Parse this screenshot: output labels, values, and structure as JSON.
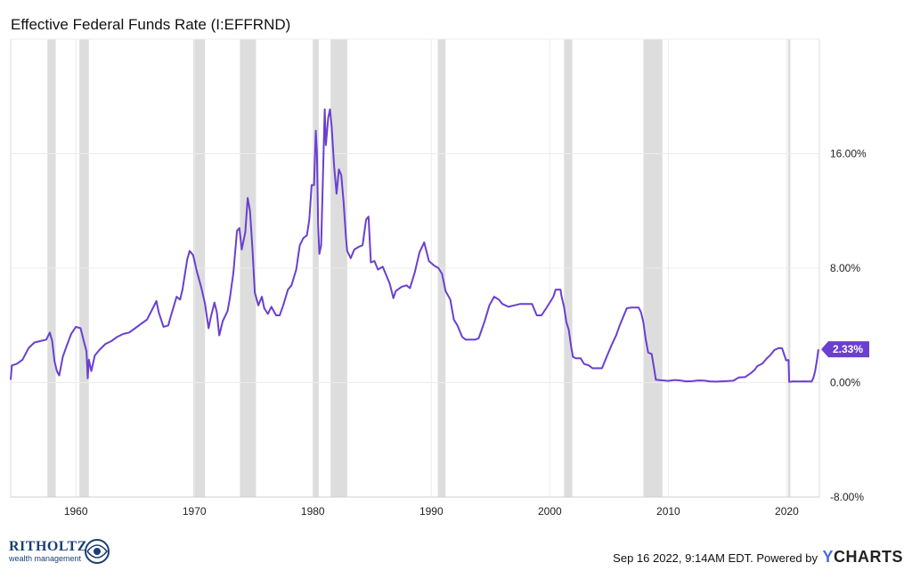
{
  "chart_data": {
    "type": "line",
    "title": "Effective Federal Funds Rate (I:EFFRND)",
    "xlabel": "",
    "ylabel": "",
    "xlim": [
      1954.5,
      2022.75
    ],
    "ylim": [
      -8,
      24
    ],
    "x_ticks": [
      1960,
      1970,
      1980,
      1990,
      2000,
      2010,
      2020
    ],
    "x_tick_labels": [
      "1960",
      "1970",
      "1980",
      "1990",
      "2000",
      "2010",
      "2020"
    ],
    "y_ticks": [
      16,
      8,
      0,
      -8
    ],
    "y_tick_labels": [
      "16.00%",
      "8.00%",
      "0.00%",
      "-8.00%"
    ],
    "grid": true,
    "series": [
      {
        "name": "",
        "color": "#6a3fd1",
        "last_value_label": "2.33%",
        "points": [
          [
            1954.5,
            0.2
          ],
          [
            1954.6,
            1.2
          ],
          [
            1955.0,
            1.3
          ],
          [
            1955.5,
            1.6
          ],
          [
            1956.0,
            2.4
          ],
          [
            1956.5,
            2.8
          ],
          [
            1957.0,
            2.9
          ],
          [
            1957.5,
            3.0
          ],
          [
            1957.8,
            3.5
          ],
          [
            1958.0,
            2.9
          ],
          [
            1958.2,
            1.5
          ],
          [
            1958.4,
            0.8
          ],
          [
            1958.6,
            0.5
          ],
          [
            1958.9,
            1.8
          ],
          [
            1959.2,
            2.5
          ],
          [
            1959.6,
            3.4
          ],
          [
            1960.0,
            3.9
          ],
          [
            1960.4,
            3.8
          ],
          [
            1960.7,
            2.8
          ],
          [
            1960.9,
            2.2
          ],
          [
            1961.0,
            0.3
          ],
          [
            1961.1,
            1.6
          ],
          [
            1961.3,
            0.8
          ],
          [
            1961.6,
            1.9
          ],
          [
            1962.0,
            2.3
          ],
          [
            1962.5,
            2.7
          ],
          [
            1963.0,
            2.9
          ],
          [
            1963.5,
            3.2
          ],
          [
            1964.0,
            3.4
          ],
          [
            1964.5,
            3.5
          ],
          [
            1965.0,
            3.8
          ],
          [
            1965.5,
            4.1
          ],
          [
            1966.0,
            4.4
          ],
          [
            1966.5,
            5.2
          ],
          [
            1966.8,
            5.7
          ],
          [
            1967.0,
            4.9
          ],
          [
            1967.4,
            3.9
          ],
          [
            1967.8,
            4.0
          ],
          [
            1968.0,
            4.6
          ],
          [
            1968.5,
            6.0
          ],
          [
            1968.8,
            5.8
          ],
          [
            1969.0,
            6.5
          ],
          [
            1969.4,
            8.6
          ],
          [
            1969.6,
            9.2
          ],
          [
            1969.9,
            8.9
          ],
          [
            1970.2,
            7.8
          ],
          [
            1970.6,
            6.6
          ],
          [
            1970.9,
            5.5
          ],
          [
            1971.2,
            3.8
          ],
          [
            1971.4,
            4.6
          ],
          [
            1971.7,
            5.6
          ],
          [
            1971.9,
            4.9
          ],
          [
            1972.1,
            3.3
          ],
          [
            1972.4,
            4.3
          ],
          [
            1972.8,
            5.0
          ],
          [
            1973.0,
            5.9
          ],
          [
            1973.3,
            7.7
          ],
          [
            1973.6,
            10.6
          ],
          [
            1973.8,
            10.8
          ],
          [
            1974.0,
            9.3
          ],
          [
            1974.3,
            10.5
          ],
          [
            1974.5,
            12.9
          ],
          [
            1974.7,
            12.0
          ],
          [
            1974.9,
            9.4
          ],
          [
            1975.1,
            6.3
          ],
          [
            1975.4,
            5.4
          ],
          [
            1975.7,
            6.0
          ],
          [
            1975.9,
            5.2
          ],
          [
            1976.2,
            4.8
          ],
          [
            1976.5,
            5.3
          ],
          [
            1976.9,
            4.7
          ],
          [
            1977.2,
            4.7
          ],
          [
            1977.5,
            5.4
          ],
          [
            1977.9,
            6.5
          ],
          [
            1978.2,
            6.8
          ],
          [
            1978.6,
            7.9
          ],
          [
            1978.9,
            9.6
          ],
          [
            1979.2,
            10.1
          ],
          [
            1979.5,
            10.3
          ],
          [
            1979.7,
            11.4
          ],
          [
            1979.9,
            13.8
          ],
          [
            1980.1,
            13.8
          ],
          [
            1980.25,
            17.6
          ],
          [
            1980.35,
            16.0
          ],
          [
            1980.45,
            11.0
          ],
          [
            1980.55,
            9.0
          ],
          [
            1980.7,
            9.6
          ],
          [
            1980.9,
            15.8
          ],
          [
            1981.0,
            19.1
          ],
          [
            1981.1,
            16.6
          ],
          [
            1981.3,
            18.5
          ],
          [
            1981.45,
            19.1
          ],
          [
            1981.6,
            17.8
          ],
          [
            1981.8,
            15.1
          ],
          [
            1982.0,
            13.2
          ],
          [
            1982.2,
            14.9
          ],
          [
            1982.4,
            14.5
          ],
          [
            1982.6,
            12.6
          ],
          [
            1982.8,
            10.1
          ],
          [
            1982.9,
            9.2
          ],
          [
            1983.2,
            8.7
          ],
          [
            1983.5,
            9.3
          ],
          [
            1983.9,
            9.5
          ],
          [
            1984.2,
            9.6
          ],
          [
            1984.5,
            11.4
          ],
          [
            1984.7,
            11.6
          ],
          [
            1984.9,
            8.4
          ],
          [
            1985.2,
            8.5
          ],
          [
            1985.5,
            7.9
          ],
          [
            1985.9,
            8.1
          ],
          [
            1986.2,
            7.5
          ],
          [
            1986.5,
            6.9
          ],
          [
            1986.8,
            5.9
          ],
          [
            1987.0,
            6.4
          ],
          [
            1987.5,
            6.7
          ],
          [
            1987.9,
            6.8
          ],
          [
            1988.2,
            6.6
          ],
          [
            1988.6,
            7.7
          ],
          [
            1989.0,
            9.1
          ],
          [
            1989.4,
            9.8
          ],
          [
            1989.8,
            8.5
          ],
          [
            1990.2,
            8.2
          ],
          [
            1990.6,
            8.0
          ],
          [
            1990.9,
            7.6
          ],
          [
            1991.2,
            6.4
          ],
          [
            1991.6,
            5.8
          ],
          [
            1991.9,
            4.4
          ],
          [
            1992.2,
            4.0
          ],
          [
            1992.6,
            3.2
          ],
          [
            1992.9,
            3.0
          ],
          [
            1993.3,
            3.0
          ],
          [
            1993.7,
            3.0
          ],
          [
            1994.0,
            3.1
          ],
          [
            1994.5,
            4.3
          ],
          [
            1994.9,
            5.4
          ],
          [
            1995.3,
            6.0
          ],
          [
            1995.7,
            5.8
          ],
          [
            1996.0,
            5.5
          ],
          [
            1996.5,
            5.3
          ],
          [
            1997.0,
            5.4
          ],
          [
            1997.5,
            5.5
          ],
          [
            1998.0,
            5.5
          ],
          [
            1998.5,
            5.5
          ],
          [
            1998.9,
            4.7
          ],
          [
            1999.3,
            4.7
          ],
          [
            1999.7,
            5.2
          ],
          [
            2000.0,
            5.6
          ],
          [
            2000.3,
            6.0
          ],
          [
            2000.5,
            6.5
          ],
          [
            2000.9,
            6.5
          ],
          [
            2001.0,
            6.0
          ],
          [
            2001.2,
            5.3
          ],
          [
            2001.4,
            4.2
          ],
          [
            2001.6,
            3.7
          ],
          [
            2001.8,
            2.5
          ],
          [
            2001.95,
            1.8
          ],
          [
            2002.2,
            1.7
          ],
          [
            2002.6,
            1.7
          ],
          [
            2002.9,
            1.3
          ],
          [
            2003.3,
            1.2
          ],
          [
            2003.6,
            1.0
          ],
          [
            2004.0,
            1.0
          ],
          [
            2004.4,
            1.0
          ],
          [
            2004.6,
            1.4
          ],
          [
            2004.9,
            2.0
          ],
          [
            2005.2,
            2.6
          ],
          [
            2005.6,
            3.3
          ],
          [
            2005.9,
            4.0
          ],
          [
            2006.2,
            4.6
          ],
          [
            2006.5,
            5.2
          ],
          [
            2006.9,
            5.25
          ],
          [
            2007.2,
            5.25
          ],
          [
            2007.5,
            5.25
          ],
          [
            2007.7,
            4.9
          ],
          [
            2007.9,
            4.2
          ],
          [
            2008.1,
            3.0
          ],
          [
            2008.3,
            2.1
          ],
          [
            2008.6,
            2.0
          ],
          [
            2008.8,
            1.0
          ],
          [
            2008.95,
            0.2
          ],
          [
            2009.2,
            0.18
          ],
          [
            2009.6,
            0.15
          ],
          [
            2010.0,
            0.12
          ],
          [
            2010.5,
            0.18
          ],
          [
            2011.0,
            0.15
          ],
          [
            2011.5,
            0.09
          ],
          [
            2012.0,
            0.1
          ],
          [
            2012.5,
            0.15
          ],
          [
            2013.0,
            0.14
          ],
          [
            2013.5,
            0.09
          ],
          [
            2014.0,
            0.07
          ],
          [
            2014.5,
            0.09
          ],
          [
            2015.0,
            0.11
          ],
          [
            2015.5,
            0.13
          ],
          [
            2015.95,
            0.36
          ],
          [
            2016.5,
            0.39
          ],
          [
            2016.95,
            0.65
          ],
          [
            2017.3,
            0.9
          ],
          [
            2017.5,
            1.15
          ],
          [
            2017.95,
            1.33
          ],
          [
            2018.3,
            1.68
          ],
          [
            2018.6,
            1.91
          ],
          [
            2018.95,
            2.27
          ],
          [
            2019.3,
            2.41
          ],
          [
            2019.6,
            2.4
          ],
          [
            2019.8,
            1.9
          ],
          [
            2019.95,
            1.55
          ],
          [
            2020.15,
            1.58
          ],
          [
            2020.2,
            0.05
          ],
          [
            2020.5,
            0.09
          ],
          [
            2021.0,
            0.08
          ],
          [
            2021.5,
            0.09
          ],
          [
            2022.1,
            0.08
          ],
          [
            2022.25,
            0.33
          ],
          [
            2022.4,
            0.83
          ],
          [
            2022.55,
            1.58
          ],
          [
            2022.67,
            2.33
          ]
        ]
      }
    ],
    "recessions": [
      [
        1957.6,
        1958.3
      ],
      [
        1960.3,
        1961.1
      ],
      [
        1969.9,
        1970.9
      ],
      [
        1973.85,
        1975.2
      ],
      [
        1980.0,
        1980.5
      ],
      [
        1981.5,
        1982.9
      ],
      [
        1990.55,
        1991.2
      ],
      [
        2001.2,
        2001.9
      ],
      [
        2007.9,
        2009.5
      ],
      [
        2020.1,
        2020.3
      ]
    ],
    "colors": {
      "line": "#6a3fd1",
      "recession": "#dddddd",
      "grid": "#ececec",
      "label_bg": "#6a3fd1"
    }
  },
  "footer": {
    "timestamp": "Sep 16 2022, 9:14AM EDT.",
    "powered_by": "Powered by",
    "ycharts_y": "Y",
    "ycharts_rest": "CHARTS"
  },
  "logo": {
    "name": "RITHOLTZ",
    "sub": "wealth management"
  }
}
